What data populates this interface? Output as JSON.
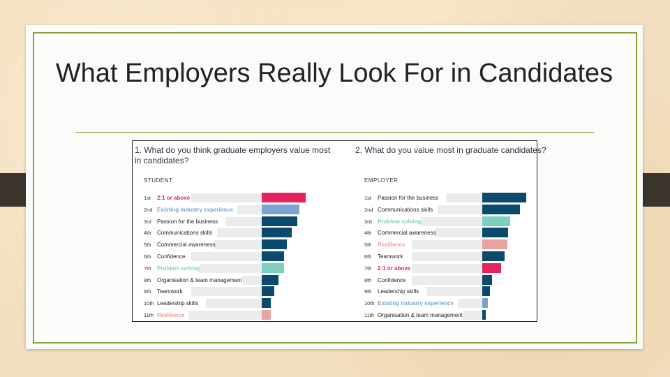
{
  "slide": {
    "title": "What Employers Really Look For in Candidates"
  },
  "colors": {
    "navy": "#0b4a6c",
    "pink": "#e3245e",
    "blue": "#7aa3d2",
    "teal": "#7dd0bf",
    "salmon": "#e8a3a3",
    "bar_bg": "#ececec"
  },
  "chart_data": [
    {
      "type": "bar",
      "question": "1. What do you think graduate employers value most in candidates?",
      "group": "STUDENT",
      "value_scale": "relative",
      "ranks": [
        "1st",
        "2nd",
        "3rd",
        "4th",
        "5th",
        "6th",
        "7th",
        "8th",
        "9th",
        "10th",
        "11th"
      ],
      "categories": [
        "2:1 or above",
        "Existing industry experience",
        "Passion for the business",
        "Communications skills",
        "Commercial awareness",
        "Confidence",
        "Problem solving",
        "Organisation & team management",
        "Teamwork",
        "Leadership skills",
        "Resilience"
      ],
      "values": [
        63,
        54,
        51,
        43,
        36,
        32,
        32,
        24,
        18,
        13,
        13
      ],
      "colors": [
        "pink",
        "blue",
        "navy",
        "navy",
        "navy",
        "navy",
        "teal",
        "navy",
        "navy",
        "navy",
        "salmon"
      ],
      "highlighted": [
        true,
        true,
        false,
        false,
        false,
        false,
        true,
        false,
        false,
        false,
        true
      ]
    },
    {
      "type": "bar",
      "question": "2. What do you value most in graduate candidates?",
      "group": "EMPLOYER",
      "value_scale": "relative",
      "ranks": [
        "1st",
        "2nd",
        "3rd",
        "4th",
        "5th",
        "6th",
        "7th",
        "8th",
        "9th",
        "10th",
        "11th"
      ],
      "categories": [
        "Passion for the business",
        "Communications skills",
        "Problem solving",
        "Commercial awareness",
        "Resilience",
        "Teamwork",
        "2:1 or above",
        "Confidence",
        "Leadership skills",
        "Existing industry experience",
        "Organisation & team management"
      ],
      "values": [
        63,
        54,
        40,
        37,
        36,
        32,
        27,
        14,
        11,
        8,
        5
      ],
      "colors": [
        "navy",
        "navy",
        "teal",
        "navy",
        "salmon",
        "navy",
        "pink",
        "navy",
        "navy",
        "blue",
        "navy"
      ],
      "highlighted": [
        false,
        false,
        true,
        false,
        true,
        false,
        true,
        false,
        false,
        true,
        false
      ]
    }
  ]
}
